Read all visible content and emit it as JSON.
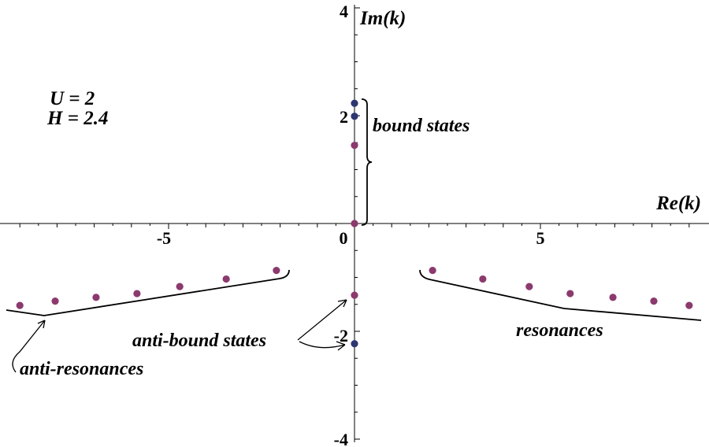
{
  "chart_data": {
    "type": "scatter",
    "xlabel": "Re(k)",
    "ylabel": "Im(k)",
    "xlim": [
      -9.4,
      9.4
    ],
    "ylim": [
      -4,
      4
    ],
    "x_ticks": [
      -5,
      0,
      5
    ],
    "y_ticks": [
      4,
      2,
      -2,
      -4
    ],
    "x_tick_labels": [
      "-5",
      "0",
      "5"
    ],
    "y_tick_labels": [
      "4",
      "2",
      "-2",
      "-4"
    ],
    "grid": false,
    "parameters": [
      "U = 2",
      "H = 2.4"
    ],
    "series": [
      {
        "color": "#8b3a6e",
        "points": [
          [
            0,
            0
          ],
          [
            0,
            1.45
          ],
          [
            0,
            -1.33
          ],
          [
            2.1,
            -0.87
          ],
          [
            3.45,
            -1.03
          ],
          [
            4.7,
            -1.17
          ],
          [
            5.8,
            -1.3
          ],
          [
            6.95,
            -1.37
          ],
          [
            8.05,
            -1.44
          ],
          [
            9.0,
            -1.52
          ],
          [
            -2.1,
            -0.87
          ],
          [
            -3.45,
            -1.03
          ],
          [
            -4.7,
            -1.17
          ],
          [
            -5.85,
            -1.3
          ],
          [
            -6.95,
            -1.37
          ],
          [
            -8.05,
            -1.44
          ],
          [
            -9.0,
            -1.52
          ]
        ]
      },
      {
        "color": "#2e3672",
        "points": [
          [
            0,
            2.23
          ],
          [
            0,
            1.99
          ],
          [
            0,
            -2.23
          ]
        ]
      }
    ],
    "annotations": {
      "bound": "bound states",
      "resonances": "resonances",
      "anti_bound": "anti-bound states",
      "anti_resonances": "anti-resonances"
    }
  }
}
